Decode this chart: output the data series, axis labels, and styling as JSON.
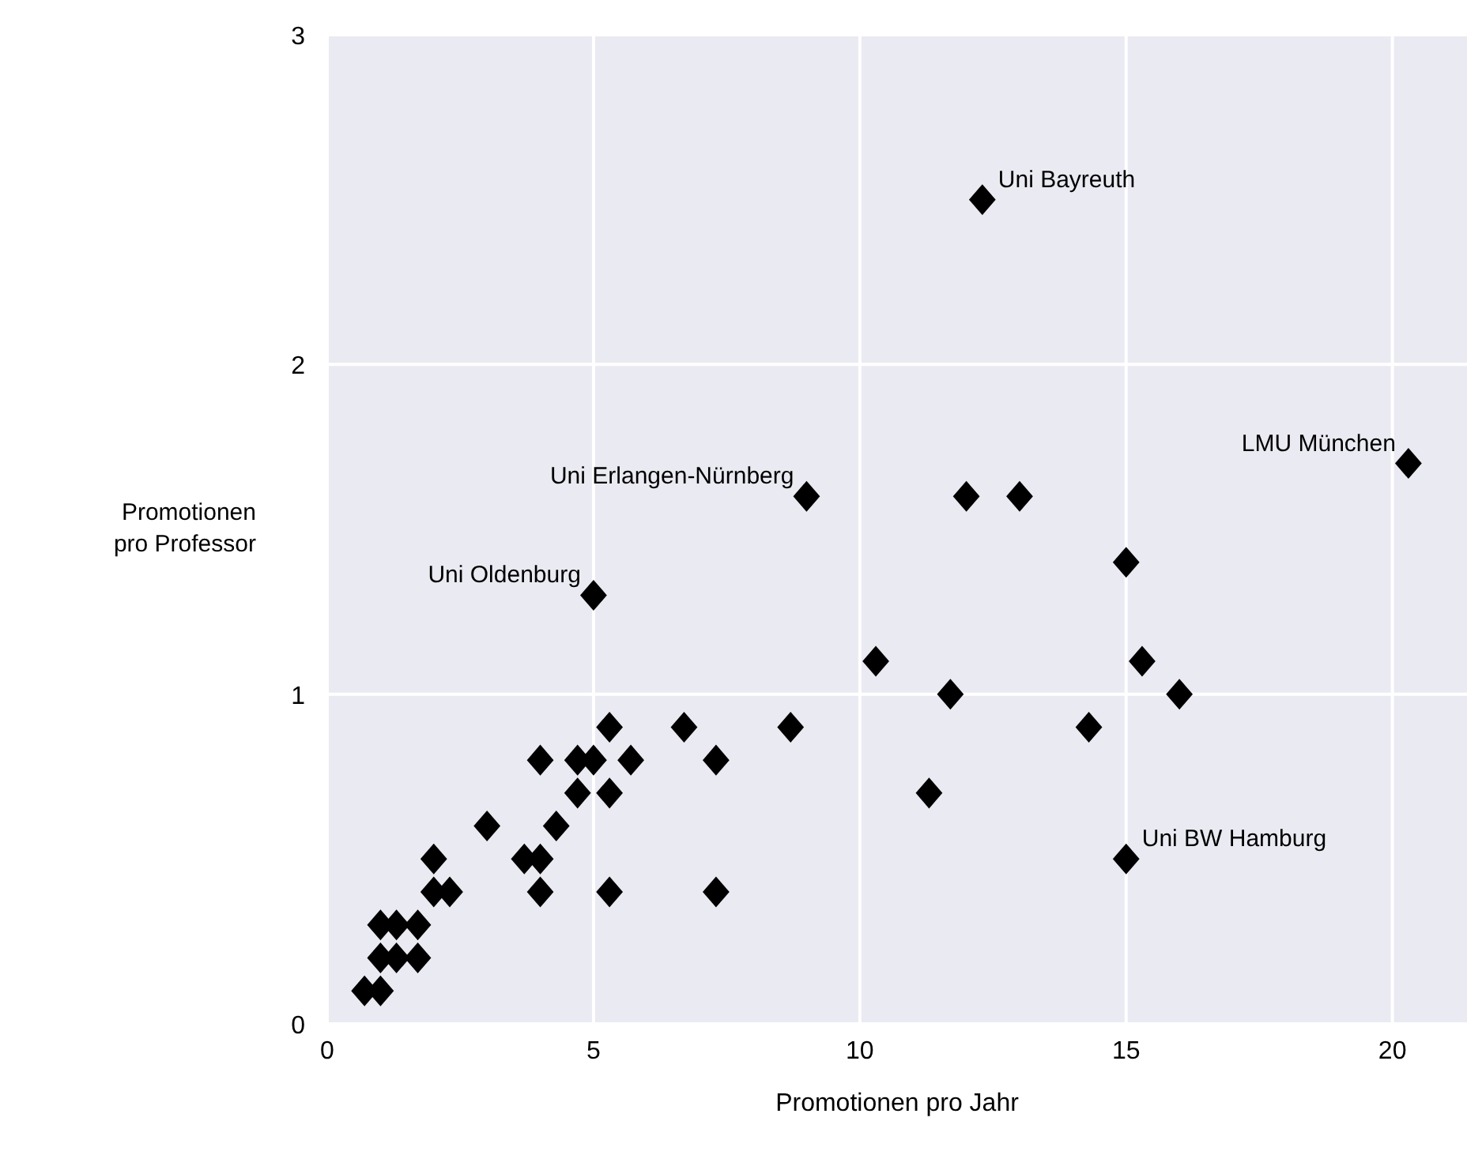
{
  "chart_data": {
    "type": "scatter",
    "xlabel": "Promotionen pro Jahr",
    "ylabel": "Promotionen\npro Professor",
    "x": [
      0.7,
      1.0,
      1.0,
      1.3,
      1.7,
      1.0,
      1.3,
      1.7,
      2.0,
      2.3,
      4.0,
      5.3,
      7.3,
      2.0,
      3.7,
      4.0,
      15.0,
      3.0,
      4.3,
      4.7,
      5.3,
      11.3,
      4.0,
      4.7,
      5.0,
      5.7,
      7.3,
      5.3,
      6.7,
      8.7,
      14.3,
      11.7,
      16.0,
      10.3,
      15.3,
      5.0,
      15.0,
      9.0,
      12.0,
      13.0,
      20.3,
      12.3
    ],
    "values": [
      0.1,
      0.1,
      0.2,
      0.2,
      0.2,
      0.3,
      0.3,
      0.3,
      0.4,
      0.4,
      0.4,
      0.4,
      0.4,
      0.5,
      0.5,
      0.5,
      0.5,
      0.6,
      0.6,
      0.7,
      0.7,
      0.7,
      0.8,
      0.8,
      0.8,
      0.8,
      0.8,
      0.9,
      0.9,
      0.9,
      0.9,
      1.0,
      1.0,
      1.1,
      1.1,
      1.3,
      1.4,
      1.6,
      1.6,
      1.6,
      1.7,
      2.5
    ],
    "color": "#000000",
    "marker": "diamond",
    "grid": true,
    "xlim": [
      0,
      21.4
    ],
    "xticks": [
      0,
      5,
      10,
      15,
      20
    ],
    "ylim": [
      0,
      3
    ],
    "yticks": [
      0,
      1,
      2,
      3
    ],
    "annotations": [
      {
        "text": "Uni Bayreuth",
        "x": 12.3,
        "y": 2.5
      },
      {
        "text": "LMU München",
        "x": 20.3,
        "y": 1.7
      },
      {
        "text": "Uni Erlangen-Nürnberg",
        "x": 9.0,
        "y": 1.6
      },
      {
        "text": "Uni Oldenburg",
        "x": 5.0,
        "y": 1.3
      },
      {
        "text": "Uni BW Hamburg",
        "x": 15.0,
        "y": 0.5
      }
    ]
  }
}
